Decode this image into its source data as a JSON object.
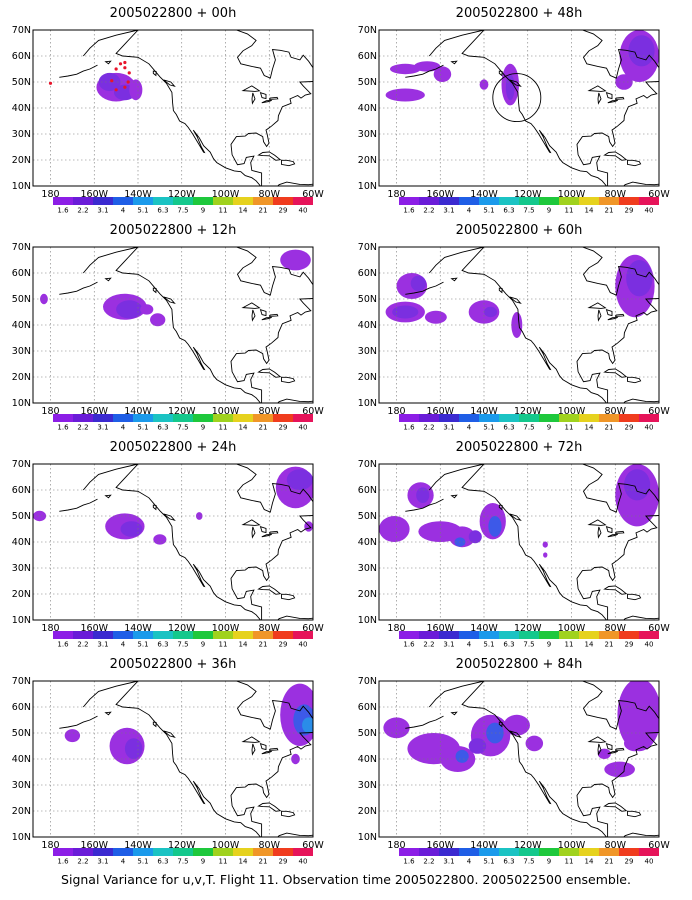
{
  "chart_data": [
    {
      "type": "heatmap",
      "title": "2005022800 + 00h",
      "x_ticks": [
        "180",
        "160W",
        "140W",
        "120W",
        "100W",
        "80W",
        "60W"
      ],
      "y_ticks": [
        "10N",
        "20N",
        "30N",
        "40N",
        "50N",
        "60N",
        "70N"
      ],
      "xlim": [
        -188,
        -60
      ],
      "ylim": [
        10,
        70
      ],
      "grid": true
    },
    {
      "type": "heatmap",
      "title": "2005022800 + 48h",
      "x_ticks": [
        "180",
        "160W",
        "140W",
        "120W",
        "100W",
        "80W",
        "60W"
      ],
      "y_ticks": [
        "10N",
        "20N",
        "30N",
        "40N",
        "50N",
        "60N",
        "70N"
      ],
      "xlim": [
        -188,
        -60
      ],
      "ylim": [
        10,
        70
      ],
      "grid": true
    },
    {
      "type": "heatmap",
      "title": "2005022800 + 12h",
      "x_ticks": [
        "180",
        "160W",
        "140W",
        "120W",
        "100W",
        "80W",
        "60W"
      ],
      "y_ticks": [
        "10N",
        "20N",
        "30N",
        "40N",
        "50N",
        "60N",
        "70N"
      ],
      "xlim": [
        -188,
        -60
      ],
      "ylim": [
        10,
        70
      ],
      "grid": true
    },
    {
      "type": "heatmap",
      "title": "2005022800 + 60h",
      "x_ticks": [
        "180",
        "160W",
        "140W",
        "120W",
        "100W",
        "80W",
        "60W"
      ],
      "y_ticks": [
        "10N",
        "20N",
        "30N",
        "40N",
        "50N",
        "60N",
        "70N"
      ],
      "xlim": [
        -188,
        -60
      ],
      "ylim": [
        10,
        70
      ],
      "grid": true
    },
    {
      "type": "heatmap",
      "title": "2005022800 + 24h",
      "x_ticks": [
        "180",
        "160W",
        "140W",
        "120W",
        "100W",
        "80W",
        "60W"
      ],
      "y_ticks": [
        "10N",
        "20N",
        "30N",
        "40N",
        "50N",
        "60N",
        "70N"
      ],
      "xlim": [
        -188,
        -60
      ],
      "ylim": [
        10,
        70
      ],
      "grid": true
    },
    {
      "type": "heatmap",
      "title": "2005022800 + 72h",
      "x_ticks": [
        "180",
        "160W",
        "140W",
        "120W",
        "100W",
        "80W",
        "60W"
      ],
      "y_ticks": [
        "10N",
        "20N",
        "30N",
        "40N",
        "50N",
        "60N",
        "70N"
      ],
      "xlim": [
        -188,
        -60
      ],
      "ylim": [
        10,
        70
      ],
      "grid": true
    },
    {
      "type": "heatmap",
      "title": "2005022800 + 36h",
      "x_ticks": [
        "180",
        "160W",
        "140W",
        "120W",
        "100W",
        "80W",
        "60W"
      ],
      "y_ticks": [
        "10N",
        "20N",
        "30N",
        "40N",
        "50N",
        "60N",
        "70N"
      ],
      "xlim": [
        -188,
        -60
      ],
      "ylim": [
        10,
        70
      ],
      "grid": true
    },
    {
      "type": "heatmap",
      "title": "2005022800 + 84h",
      "x_ticks": [
        "180",
        "160W",
        "140W",
        "120W",
        "100W",
        "80W",
        "60W"
      ],
      "y_ticks": [
        "10N",
        "20N",
        "30N",
        "40N",
        "50N",
        "60N",
        "70N"
      ],
      "xlim": [
        -188,
        -60
      ],
      "ylim": [
        10,
        70
      ],
      "grid": true
    }
  ],
  "colorbar": {
    "labels": [
      "1.6",
      "2.2",
      "3.1",
      "4",
      "5.1",
      "6.3",
      "7.5",
      "9",
      "11",
      "14",
      "21",
      "29",
      "40"
    ],
    "colors": [
      "#8c1ee6",
      "#6a1cd8",
      "#3b2ad0",
      "#1f5ee6",
      "#1b9aeb",
      "#1bc3c3",
      "#14c88c",
      "#1ec83c",
      "#a0d21e",
      "#e6d21e",
      "#f09628",
      "#f03c1e",
      "#e6145a"
    ]
  },
  "blob_colors": {
    "base": "#9b30e0",
    "mid": "#7b2fe0",
    "core": "#3d59e8",
    "deep": "#2a8de8",
    "marker": "#e8142a"
  },
  "caption": "Signal Variance for u,v,T. Flight 11. Observation time 2005022800. 2005022500 ensemble."
}
